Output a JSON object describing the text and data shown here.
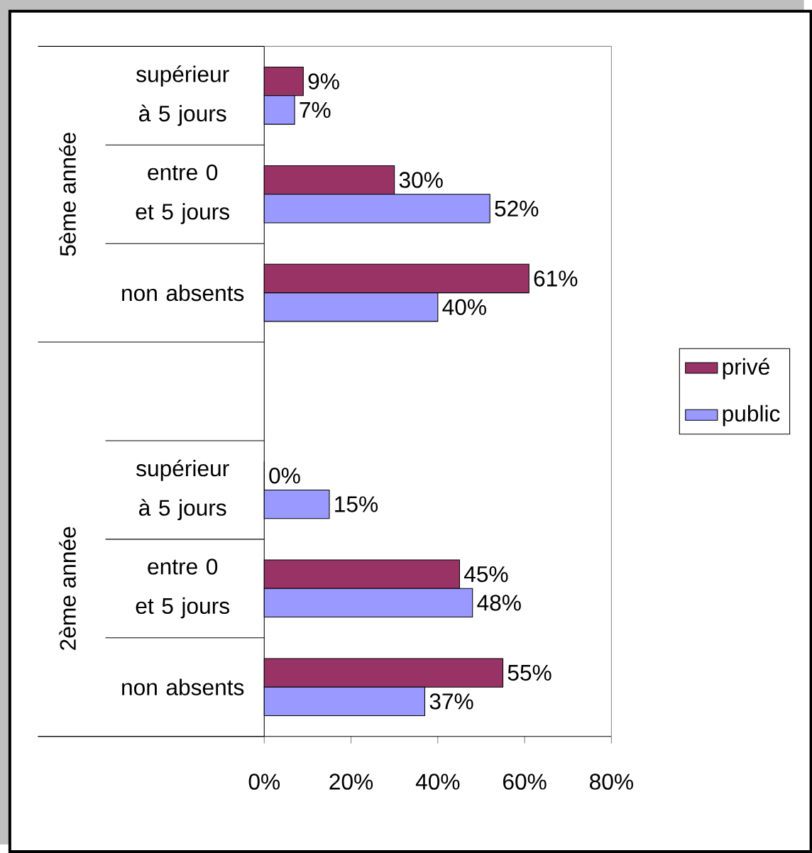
{
  "chart_data": {
    "type": "bar",
    "orientation": "horizontal",
    "categories": [
      "supérieur à 5 jours",
      "entre 0 et 5 jours",
      "non absents",
      null,
      "supérieur à 5 jours",
      "entre 0 et 5 jours",
      "non absents"
    ],
    "annotations": [
      "5ème année",
      "2ème année"
    ],
    "series": [
      {
        "name": "privé",
        "color": "#993366",
        "values": [
          9,
          30,
          61,
          null,
          0,
          45,
          55
        ],
        "value_labels": [
          "9%",
          "30%",
          "61%",
          null,
          "0%",
          "45%",
          "55%"
        ]
      },
      {
        "name": "public",
        "color": "#9999ff",
        "values": [
          7,
          52,
          40,
          null,
          15,
          48,
          37
        ],
        "value_labels": [
          "7%",
          "52%",
          "40%",
          null,
          "15%",
          "48%",
          "37%"
        ]
      }
    ],
    "xlim": [
      0,
      80
    ],
    "xticks": [
      {
        "value": 0,
        "label": "0%"
      },
      {
        "value": 20,
        "label": "20%"
      },
      {
        "value": 40,
        "label": "40%"
      },
      {
        "value": 60,
        "label": "60%"
      },
      {
        "value": 80,
        "label": "80%"
      }
    ],
    "legend": "right"
  }
}
